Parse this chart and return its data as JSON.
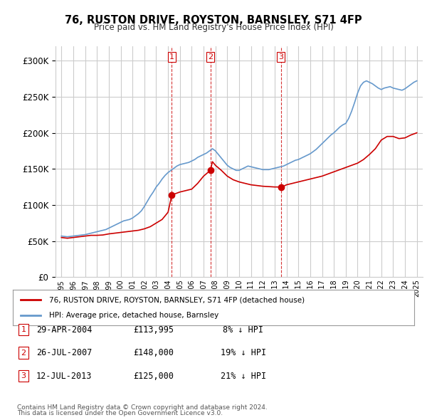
{
  "title": "76, RUSTON DRIVE, ROYSTON, BARNSLEY, S71 4FP",
  "subtitle": "Price paid vs. HM Land Registry's House Price Index (HPI)",
  "legend_line1": "76, RUSTON DRIVE, ROYSTON, BARNSLEY, S71 4FP (detached house)",
  "legend_line2": "HPI: Average price, detached house, Barnsley",
  "footer1": "Contains HM Land Registry data © Crown copyright and database right 2024.",
  "footer2": "This data is licensed under the Open Government Licence v3.0.",
  "transactions": [
    {
      "num": 1,
      "date": "29-APR-2004",
      "price": "£113,995",
      "pct": "8% ↓ HPI"
    },
    {
      "num": 2,
      "date": "26-JUL-2007",
      "price": "£148,000",
      "pct": "19% ↓ HPI"
    },
    {
      "num": 3,
      "date": "12-JUL-2013",
      "price": "£125,000",
      "pct": "21% ↓ HPI"
    }
  ],
  "vlines": [
    {
      "x": 2004.32,
      "label": "1"
    },
    {
      "x": 2007.57,
      "label": "2"
    },
    {
      "x": 2013.53,
      "label": "3"
    }
  ],
  "red_line_color": "#cc0000",
  "blue_line_color": "#6699cc",
  "background_color": "#ffffff",
  "grid_color": "#cccccc",
  "vline_color": "#cc0000",
  "ylim": [
    0,
    320000
  ],
  "xlim_start": 1994.5,
  "xlim_end": 2025.5
}
